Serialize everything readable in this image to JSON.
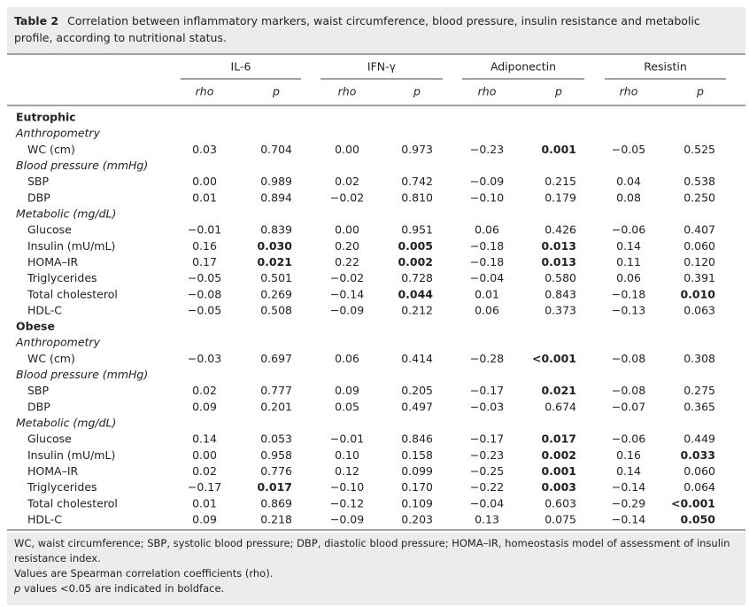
{
  "caption": {
    "label": "Table 2",
    "text": "Correlation between inflammatory markers, waist circumference, blood pressure, insulin resistance and metabolic profile, according to nutritional status."
  },
  "table": {
    "groups": [
      "IL-6",
      "IFN-γ",
      "Adiponectin",
      "Resistin"
    ],
    "subheaders": [
      "rho",
      "p",
      "rho",
      "p",
      "rho",
      "p",
      "rho",
      "p"
    ],
    "sections": [
      {
        "name": "Eutrophic",
        "subsections": [
          {
            "name": "Anthropometry",
            "rows": [
              {
                "label": "WC (cm)",
                "cells": [
                  "0.03",
                  "0.704",
                  "0.00",
                  "0.973",
                  "−0.23",
                  "0.001",
                  "−0.05",
                  "0.525"
                ],
                "bold": [
                  5
                ]
              }
            ]
          },
          {
            "name": "Blood pressure (mmHg)",
            "rows": [
              {
                "label": "SBP",
                "cells": [
                  "0.00",
                  "0.989",
                  "0.02",
                  "0.742",
                  "−0.09",
                  "0.215",
                  "0.04",
                  "0.538"
                ],
                "bold": []
              },
              {
                "label": "DBP",
                "cells": [
                  "0.01",
                  "0.894",
                  "−0.02",
                  "0.810",
                  "−0.10",
                  "0.179",
                  "0.08",
                  "0.250"
                ],
                "bold": []
              }
            ]
          },
          {
            "name": "Metabolic (mg/dL)",
            "rows": [
              {
                "label": "Glucose",
                "cells": [
                  "−0.01",
                  "0.839",
                  "0.00",
                  "0.951",
                  "0.06",
                  "0.426",
                  "−0.06",
                  "0.407"
                ],
                "bold": []
              },
              {
                "label": "Insulin (mU/mL)",
                "cells": [
                  "0.16",
                  "0.030",
                  "0.20",
                  "0.005",
                  "−0.18",
                  "0.013",
                  "0.14",
                  "0.060"
                ],
                "bold": [
                  1,
                  3,
                  5
                ]
              },
              {
                "label": "HOMA–IR",
                "cells": [
                  "0.17",
                  "0.021",
                  "0.22",
                  "0.002",
                  "−0.18",
                  "0.013",
                  "0.11",
                  "0.120"
                ],
                "bold": [
                  1,
                  3,
                  5
                ]
              },
              {
                "label": "Triglycerides",
                "cells": [
                  "−0.05",
                  "0.501",
                  "−0.02",
                  "0.728",
                  "−0.04",
                  "0.580",
                  "0.06",
                  "0.391"
                ],
                "bold": []
              },
              {
                "label": "Total cholesterol",
                "cells": [
                  "−0.08",
                  "0.269",
                  "−0.14",
                  "0.044",
                  "0.01",
                  "0.843",
                  "−0.18",
                  "0.010"
                ],
                "bold": [
                  3,
                  7
                ]
              },
              {
                "label": "HDL-C",
                "cells": [
                  "−0.05",
                  "0.508",
                  "−0.09",
                  "0.212",
                  "0.06",
                  "0.373",
                  "−0.13",
                  "0.063"
                ],
                "bold": []
              }
            ]
          }
        ]
      },
      {
        "name": "Obese",
        "subsections": [
          {
            "name": "Anthropometry",
            "rows": [
              {
                "label": "WC (cm)",
                "cells": [
                  "−0.03",
                  "0.697",
                  "0.06",
                  "0.414",
                  "−0.28",
                  "<0.001",
                  "−0.08",
                  "0.308"
                ],
                "bold": [
                  5
                ]
              }
            ]
          },
          {
            "name": "Blood pressure (mmHg)",
            "rows": [
              {
                "label": "SBP",
                "cells": [
                  "0.02",
                  "0.777",
                  "0.09",
                  "0.205",
                  "−0.17",
                  "0.021",
                  "−0.08",
                  "0.275"
                ],
                "bold": [
                  5
                ]
              },
              {
                "label": "DBP",
                "cells": [
                  "0.09",
                  "0.201",
                  "0.05",
                  "0.497",
                  "−0.03",
                  "0.674",
                  "−0.07",
                  "0.365"
                ],
                "bold": []
              }
            ]
          },
          {
            "name": "Metabolic (mg/dL)",
            "rows": [
              {
                "label": "Glucose",
                "cells": [
                  "0.14",
                  "0.053",
                  "−0.01",
                  "0.846",
                  "−0.17",
                  "0.017",
                  "−0.06",
                  "0.449"
                ],
                "bold": [
                  5
                ]
              },
              {
                "label": "Insulin (mU/mL)",
                "cells": [
                  "0.00",
                  "0.958",
                  "0.10",
                  "0.158",
                  "−0.23",
                  "0.002",
                  "0.16",
                  "0.033"
                ],
                "bold": [
                  5,
                  7
                ]
              },
              {
                "label": "HOMA–IR",
                "cells": [
                  "0.02",
                  "0.776",
                  "0.12",
                  "0.099",
                  "−0.25",
                  "0.001",
                  "0.14",
                  "0.060"
                ],
                "bold": [
                  5
                ]
              },
              {
                "label": "Triglycerides",
                "cells": [
                  "−0.17",
                  "0.017",
                  "−0.10",
                  "0.170",
                  "−0.22",
                  "0.003",
                  "−0.14",
                  "0.064"
                ],
                "bold": [
                  1,
                  5
                ]
              },
              {
                "label": "Total cholesterol",
                "cells": [
                  "0.01",
                  "0.869",
                  "−0.12",
                  "0.109",
                  "−0.04",
                  "0.603",
                  "−0.29",
                  "<0.001"
                ],
                "bold": [
                  7
                ]
              },
              {
                "label": "HDL-C",
                "cells": [
                  "0.09",
                  "0.218",
                  "−0.09",
                  "0.203",
                  "0.13",
                  "0.075",
                  "−0.14",
                  "0.050"
                ],
                "bold": [
                  7
                ]
              }
            ]
          }
        ]
      }
    ]
  },
  "notes": {
    "abbreviations": "WC, waist circumference; SBP, systolic blood pressure; DBP, diastolic blood pressure; HOMA–IR, homeostasis model of assessment of insulin resistance index.",
    "values": "Values are Spearman correlation coefficients (rho).",
    "bold_symbol": "p",
    "bold_text": "values <0.05 are indicated in boldface."
  }
}
